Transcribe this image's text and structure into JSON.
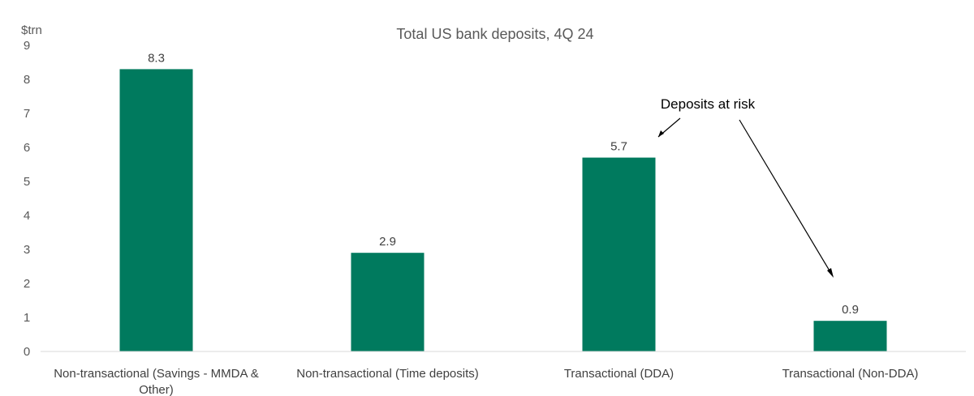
{
  "chart_data": {
    "type": "bar",
    "title": "Total US bank deposits, 4Q 24",
    "ylabel": "$trn",
    "xlabel": "",
    "ylim": [
      0,
      9
    ],
    "yticks": [
      "0",
      "1",
      "2",
      "3",
      "4",
      "5",
      "6",
      "7",
      "8",
      "9"
    ],
    "categories": [
      "Non-transactional (Savings - MMDA & Other)",
      "Non-transactional (Time deposits)",
      "Transactional (DDA)",
      "Transactional (Non-DDA)"
    ],
    "values": [
      8.3,
      2.9,
      5.7,
      0.9
    ],
    "data_labels": [
      "8.3",
      "2.9",
      "5.7",
      "0.9"
    ],
    "bar_color": "#007A5E",
    "grid": false,
    "legend": "none",
    "annotation": {
      "text": "Deposits at risk",
      "points_to": [
        "Transactional (DDA)",
        "Transactional (Non-DDA)"
      ]
    }
  }
}
